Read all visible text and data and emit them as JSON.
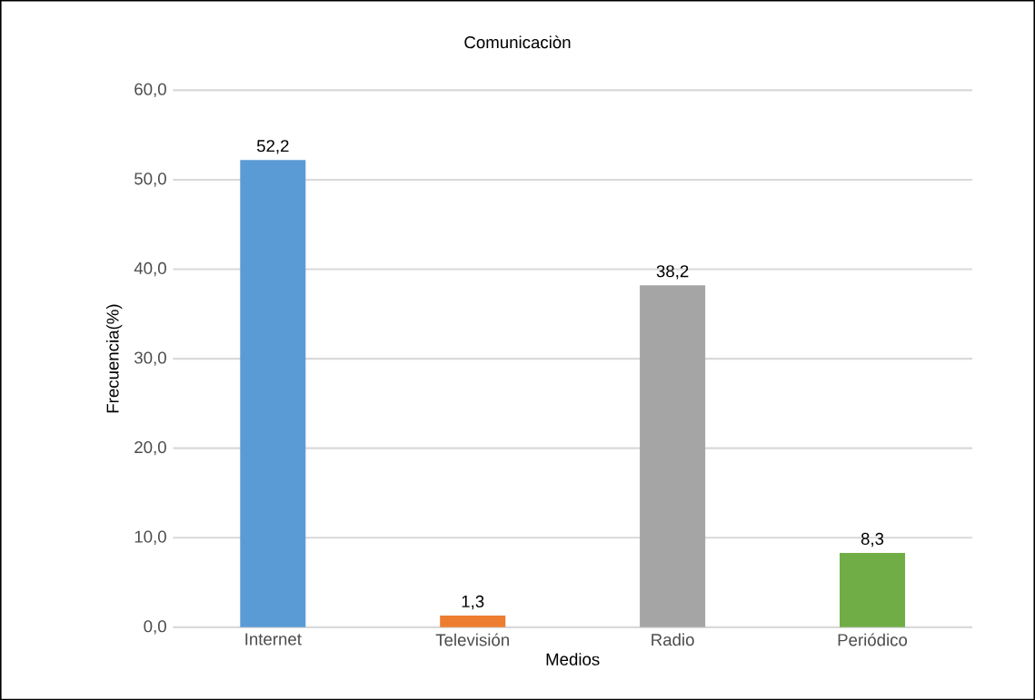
{
  "chart_data": {
    "type": "bar",
    "title": "Comunicaciòn",
    "xlabel": "Medios",
    "ylabel": "Frecuencia(%)",
    "categories": [
      "Internet",
      "Televisión",
      "Radio",
      "Periódico"
    ],
    "values": [
      52.2,
      1.3,
      38.2,
      8.3
    ],
    "colors": [
      "#5b9bd5",
      "#ed7d31",
      "#a5a5a5",
      "#70ad47"
    ],
    "value_labels": [
      "52,2",
      "1,3",
      "38,2",
      "8,3"
    ],
    "ylim": [
      0,
      60
    ],
    "yticks": [
      {
        "value": 0,
        "label": "0,0"
      },
      {
        "value": 10,
        "label": "10,0"
      },
      {
        "value": 20,
        "label": "20,0"
      },
      {
        "value": 30,
        "label": "30,0"
      },
      {
        "value": 40,
        "label": "40,0"
      },
      {
        "value": 50,
        "label": "50,0"
      },
      {
        "value": 60,
        "label": "60,0"
      }
    ],
    "grid": "y"
  }
}
